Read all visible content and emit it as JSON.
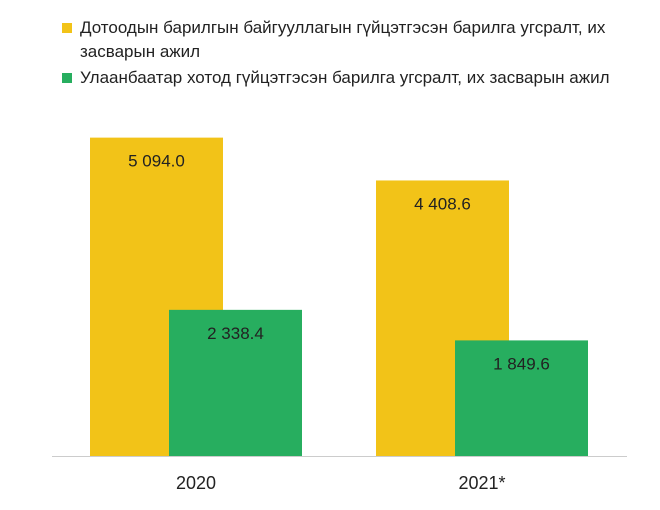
{
  "chart_data": {
    "type": "bar",
    "categories": [
      "2020",
      "2021*"
    ],
    "series": [
      {
        "name": "Дотоодын барилгын байгууллагын гүйцэтгэсэн барилга угсралт, их засварын ажил",
        "values": [
          5094.0,
          4408.6
        ],
        "labels": [
          "5 094.0",
          "4 408.6"
        ],
        "color": "#f2c318"
      },
      {
        "name": "Улаанбаатар хотод гүйцэтгэсэн барилга угсралт, их засварын ажил",
        "values": [
          2338.4,
          1849.6
        ],
        "labels": [
          "2 338.4",
          "1 849.6"
        ],
        "color": "#27ae5f"
      }
    ],
    "ylim": [
      0,
      6000
    ],
    "grid": false,
    "legend": "top-left",
    "axis_color": "#cccccc"
  }
}
